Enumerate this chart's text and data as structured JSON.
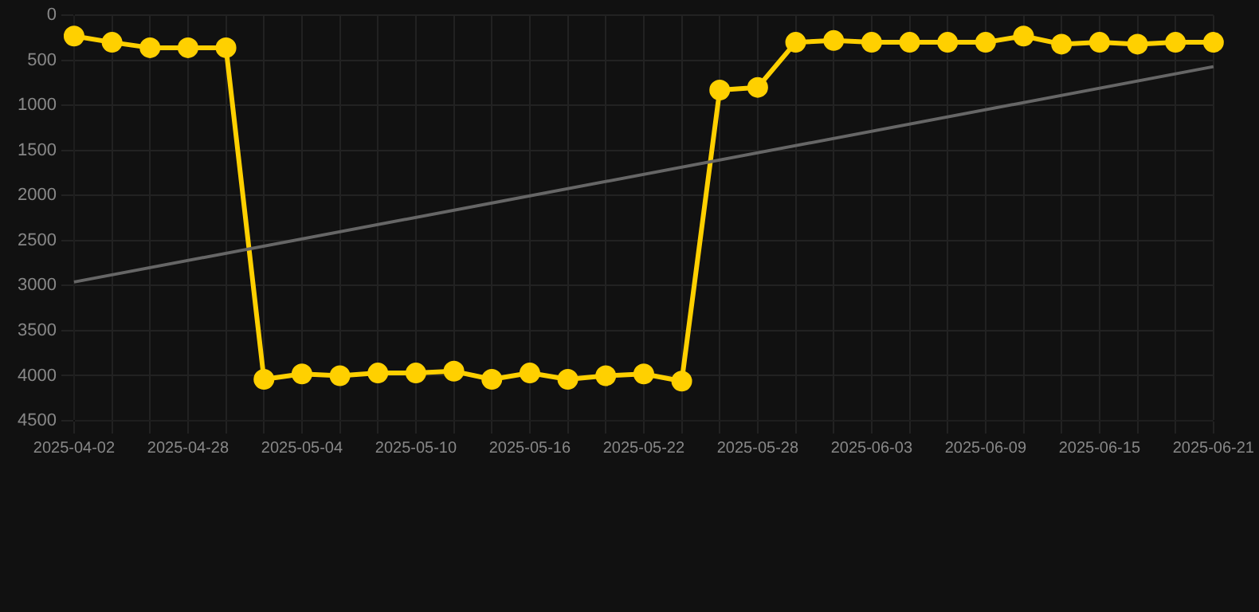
{
  "chart_data": {
    "type": "line",
    "categories": [
      "2025-04-02",
      null,
      null,
      "2025-04-28",
      null,
      null,
      "2025-05-04",
      null,
      null,
      "2025-05-10",
      null,
      null,
      "2025-05-16",
      null,
      null,
      "2025-05-22",
      null,
      null,
      "2025-05-28",
      null,
      null,
      "2025-06-03",
      null,
      null,
      "2025-06-09",
      null,
      null,
      "2025-06-15",
      null,
      null,
      "2025-06-21"
    ],
    "series": [
      {
        "color": "#ffd000",
        "marker": "circle",
        "values": [
          230,
          300,
          360,
          360,
          360,
          4040,
          3980,
          4000,
          3970,
          3970,
          3950,
          4040,
          3970,
          4040,
          4000,
          3980,
          4060,
          830,
          800,
          300,
          280,
          300,
          300,
          300,
          300,
          230,
          320,
          300,
          320,
          300,
          300
        ]
      },
      {
        "color": "#666666",
        "marker": "none",
        "values": [
          2960,
          null,
          null,
          null,
          null,
          null,
          null,
          null,
          null,
          null,
          null,
          null,
          null,
          null,
          null,
          null,
          null,
          null,
          null,
          null,
          null,
          null,
          null,
          null,
          null,
          null,
          null,
          null,
          null,
          null,
          570
        ]
      }
    ],
    "ylim": [
      4500,
      0
    ],
    "yticks": [
      0,
      500,
      1000,
      1500,
      2000,
      2500,
      3000,
      3500,
      4000,
      4500
    ],
    "grid": true,
    "legend": false
  }
}
